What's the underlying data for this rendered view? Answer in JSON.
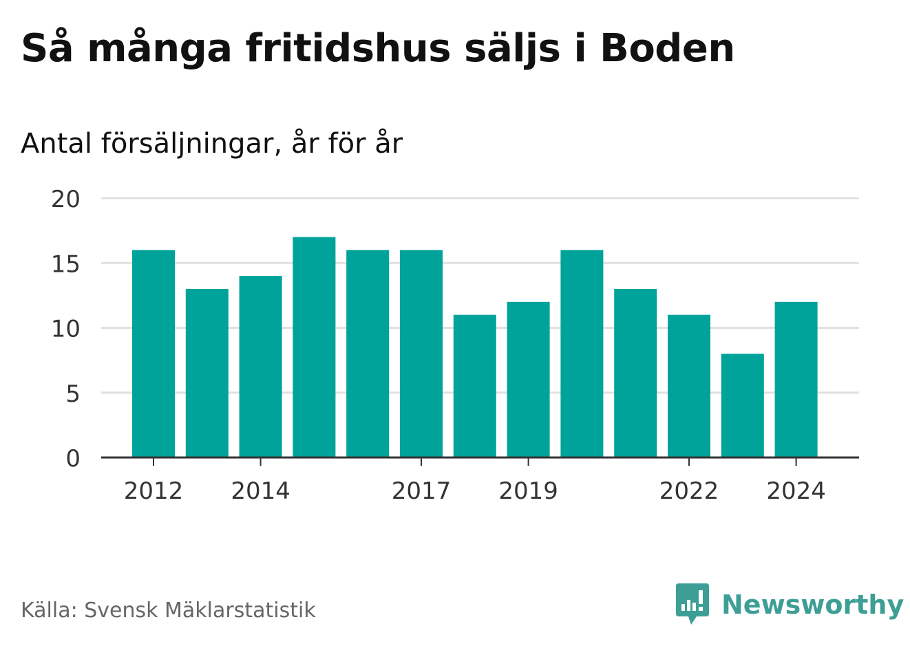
{
  "header": {
    "title": "Så många fritidshus säljs i Boden",
    "subtitle": "Antal försäljningar, år för år"
  },
  "footer": {
    "source": "Källa: Svensk Mäklarstatistik",
    "brand": "Newsworthy"
  },
  "colors": {
    "bar": "#00a39a",
    "grid": "#e0e0e0",
    "axis": "#333333",
    "brand": "#3d9e96"
  },
  "chart_data": {
    "type": "bar",
    "categories": [
      "2012",
      "2013",
      "2014",
      "2015",
      "2016",
      "2017",
      "2018",
      "2019",
      "2020",
      "2021",
      "2022",
      "2023",
      "2024"
    ],
    "values": [
      16,
      13,
      14,
      17,
      16,
      16,
      11,
      12,
      16,
      13,
      11,
      8,
      12
    ],
    "x_tick_labels": [
      "2012",
      "2014",
      "2017",
      "2019",
      "2022",
      "2024"
    ],
    "y_ticks": [
      0,
      5,
      10,
      15,
      20
    ],
    "ylim": [
      0,
      20
    ],
    "grid": true
  }
}
